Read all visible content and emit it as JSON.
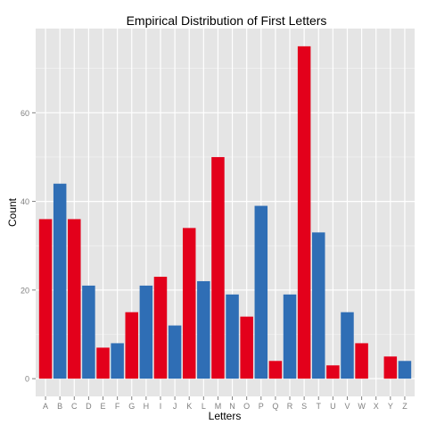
{
  "chart_data": {
    "type": "bar",
    "title": "Empirical Distribution of First Letters",
    "xlabel": "Letters",
    "ylabel": "Count",
    "categories": [
      "A",
      "B",
      "C",
      "D",
      "E",
      "F",
      "G",
      "H",
      "I",
      "J",
      "K",
      "L",
      "M",
      "N",
      "O",
      "P",
      "Q",
      "R",
      "S",
      "T",
      "U",
      "V",
      "W",
      "X",
      "Y",
      "Z"
    ],
    "values": [
      36,
      44,
      36,
      21,
      7,
      8,
      15,
      21,
      23,
      12,
      34,
      22,
      50,
      19,
      14,
      39,
      4,
      19,
      75,
      33,
      3,
      15,
      8,
      0,
      5,
      4
    ],
    "bar_colors": [
      "#E3001B",
      "#2F6EB5",
      "#E3001B",
      "#2F6EB5",
      "#E3001B",
      "#2F6EB5",
      "#E3001B",
      "#2F6EB5",
      "#E3001B",
      "#2F6EB5",
      "#E3001B",
      "#2F6EB5",
      "#E3001B",
      "#2F6EB5",
      "#E3001B",
      "#2F6EB5",
      "#E3001B",
      "#2F6EB5",
      "#E3001B",
      "#2F6EB5",
      "#E3001B",
      "#2F6EB5",
      "#E3001B",
      "#2F6EB5",
      "#E3001B",
      "#2F6EB5"
    ],
    "ylim": [
      -4,
      79
    ],
    "yticks": [
      0,
      20,
      40,
      60
    ],
    "grid": true,
    "panel_background": "#E5E5E5",
    "grid_color": "#FFFFFF"
  }
}
